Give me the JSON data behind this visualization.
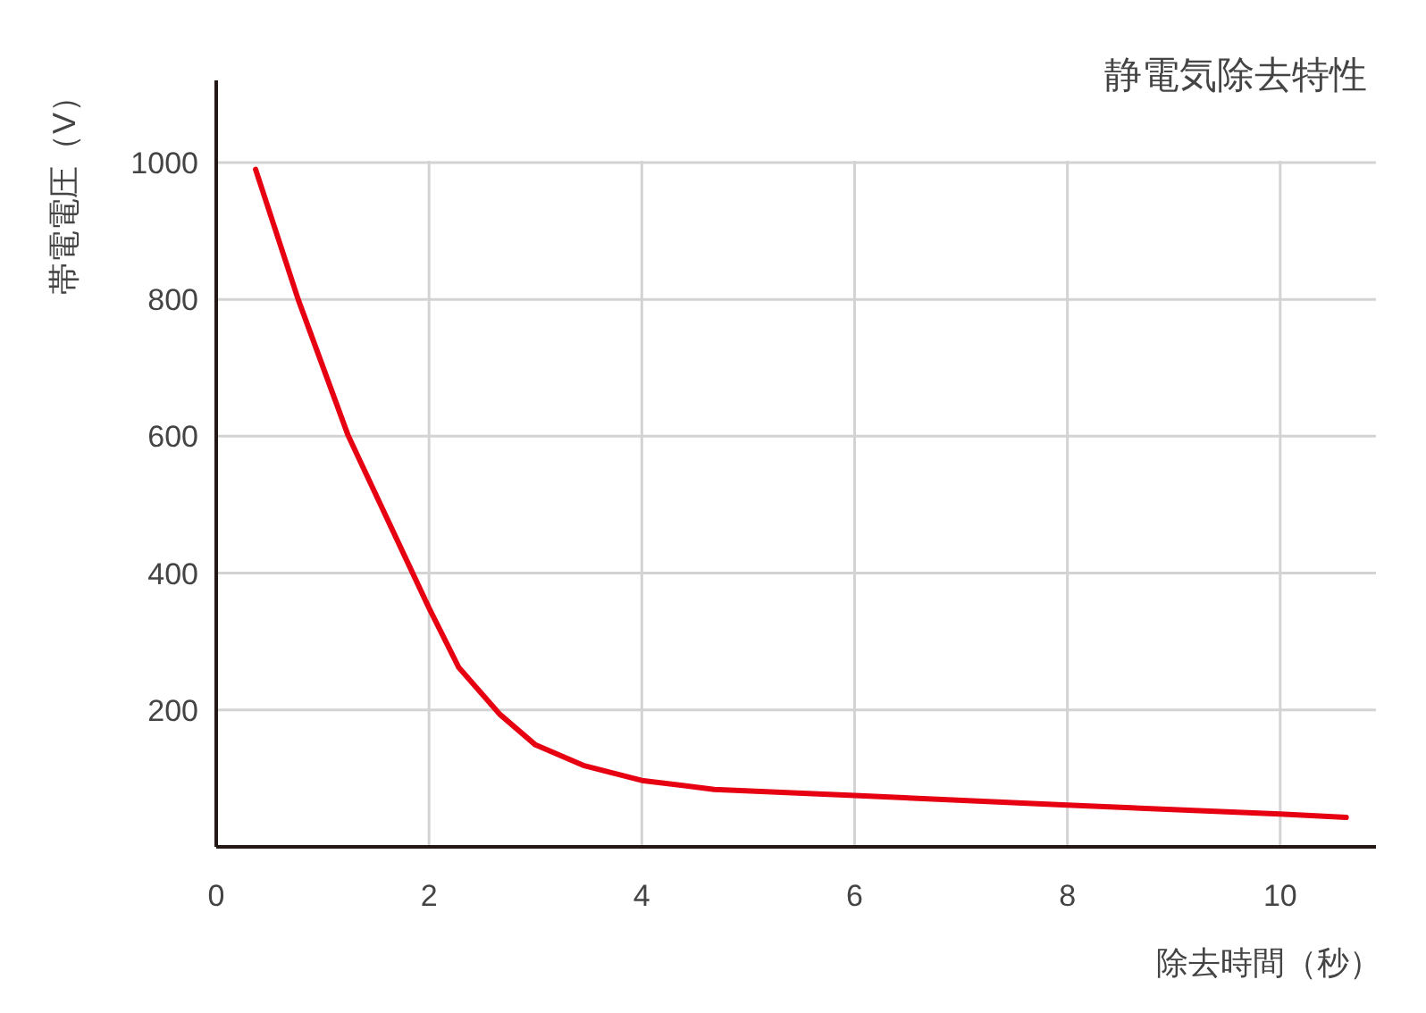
{
  "chart_data": {
    "type": "line",
    "title": "静電気除去特性",
    "xlabel": "除去時間（秒）",
    "ylabel": "帯電電圧（V）",
    "x": [
      0.37,
      0.77,
      1.24,
      2.0,
      2.28,
      2.67,
      3.0,
      3.45,
      4.0,
      4.68,
      6.0,
      8.0,
      10.0,
      10.62
    ],
    "series": [
      {
        "color": "#e60012",
        "values": [
          990,
          800,
          601,
          349,
          262,
          193,
          149,
          119,
          97,
          84,
          75,
          61,
          48,
          43
        ]
      }
    ],
    "xlim": [
      0,
      10.9
    ],
    "ylim": [
      0,
      1120
    ],
    "xticks": [
      0,
      2,
      4,
      6,
      8,
      10
    ],
    "yticks": [
      200,
      400,
      600,
      800,
      1000
    ],
    "grid": true,
    "marker": "none",
    "line_style": "solid"
  }
}
